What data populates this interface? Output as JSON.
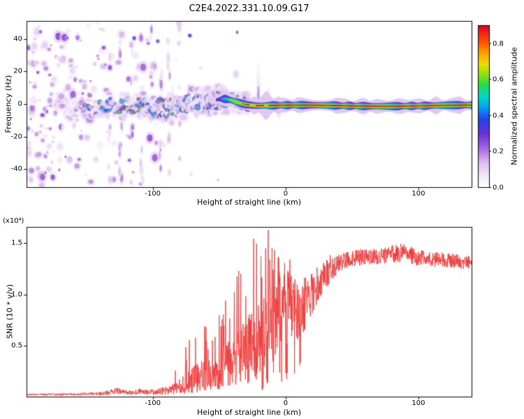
{
  "title": "C2E4.2022.331.10.09.G17",
  "chart_data": [
    {
      "type": "heatmap",
      "panel": "spectrogram",
      "title": "C2E4.2022.331.10.09.G17",
      "xlabel": "Height of straight line (km)",
      "ylabel": "Frequency (Hz)",
      "xlim": [
        -195,
        140
      ],
      "ylim": [
        -51,
        51
      ],
      "xticks": [
        {
          "v": -100,
          "label": "-100"
        },
        {
          "v": 0,
          "label": "0"
        },
        {
          "v": 100,
          "label": "100"
        }
      ],
      "yticks": [
        {
          "v": -40,
          "label": "-40"
        },
        {
          "v": -20,
          "label": "-20"
        },
        {
          "v": 0,
          "label": "0"
        },
        {
          "v": 20,
          "label": "20"
        },
        {
          "v": 40,
          "label": "40"
        }
      ],
      "colorbar": {
        "label": "Normalized spectral amplitude",
        "vmin": 0.0,
        "vmax": 0.9,
        "ticks": [
          {
            "v": 0.0,
            "label": "0.0"
          },
          {
            "v": 0.2,
            "label": "0.2"
          },
          {
            "v": 0.4,
            "label": "0.4"
          },
          {
            "v": 0.6,
            "label": "0.6"
          },
          {
            "v": 0.8,
            "label": "0.8"
          }
        ],
        "stops": [
          [
            0,
            "#ffffff"
          ],
          [
            0.07,
            "#f3e8f8"
          ],
          [
            0.15,
            "#dcc0ee"
          ],
          [
            0.24,
            "#a868dc"
          ],
          [
            0.33,
            "#6a30d8"
          ],
          [
            0.42,
            "#2840e8"
          ],
          [
            0.5,
            "#00a8f0"
          ],
          [
            0.56,
            "#00d8c8"
          ],
          [
            0.63,
            "#20dc50"
          ],
          [
            0.7,
            "#90e010"
          ],
          [
            0.76,
            "#e8e000"
          ],
          [
            0.83,
            "#ffa000"
          ],
          [
            0.9,
            "#ff5000"
          ],
          [
            1,
            "#e00020"
          ]
        ]
      },
      "description": "Scattered low-amplitude purple noise fills the left third of the panel, thinning toward the centre; a narrow signal trace near 0 Hz wanders as scattered blue/cyan/green blobs for heights below about -30 km, then becomes a tight continuous red-cored band with green/cyan/purple fringes out to +140 km.",
      "noise_field": {
        "x_range": [
          -195,
          -30
        ],
        "amp_range": [
          0.05,
          0.27
        ],
        "density": [
          [
            -195,
            3.6
          ],
          [
            -182,
            3.3
          ],
          [
            -170,
            3.0
          ],
          [
            -158,
            2.5
          ],
          [
            -150,
            1.9
          ],
          [
            -142,
            1.4
          ],
          [
            -134,
            1.0
          ],
          [
            -126,
            0.8
          ],
          [
            -118,
            0.85
          ],
          [
            -110,
            0.75
          ],
          [
            -102,
            0.6
          ],
          [
            -94,
            0.45
          ],
          [
            -86,
            0.3
          ],
          [
            -78,
            0.2
          ],
          [
            -70,
            0.14
          ],
          [
            -62,
            0.1
          ],
          [
            -52,
            0.09
          ],
          [
            -42,
            0.07
          ],
          [
            -30,
            0.05
          ]
        ],
        "streaks": [
          {
            "x": -133,
            "s": 1.5
          },
          {
            "x": -124,
            "s": 2.0
          },
          {
            "x": -116,
            "s": 1.7
          },
          {
            "x": -108,
            "s": 2.2
          },
          {
            "x": -101,
            "s": 1.4
          },
          {
            "x": -94,
            "s": 1.9
          },
          {
            "x": -88,
            "s": 1.3
          },
          {
            "x": -80,
            "s": 1.0
          },
          {
            "x": -72,
            "s": 0.7
          }
        ]
      },
      "band": {
        "center_hz": -1,
        "scatter_x": [
          -172,
          -28
        ],
        "scatter_density": [
          [
            -172,
            0.15
          ],
          [
            -158,
            0.2
          ],
          [
            -145,
            0.28
          ],
          [
            -132,
            0.35
          ],
          [
            -120,
            0.45
          ],
          [
            -108,
            0.55
          ],
          [
            -96,
            0.65
          ],
          [
            -85,
            0.78
          ],
          [
            -74,
            0.9
          ],
          [
            -62,
            1.0
          ],
          [
            -50,
            1.05
          ],
          [
            -40,
            1.1
          ],
          [
            -28,
            1.1
          ]
        ],
        "continuous_x": [
          -57,
          140
        ],
        "red_segments": [
          [
            -33.5,
            -27.5
          ],
          [
            -23,
            -16.5
          ],
          [
            -13.5,
            140
          ]
        ],
        "bulges": [
          {
            "c": -24,
            "s": 2.5,
            "a": 2.2
          },
          {
            "c": -15,
            "s": 3.5,
            "a": 4.2
          },
          {
            "c": -6,
            "s": 2.5,
            "a": 2.2
          },
          {
            "c": 8,
            "s": 3,
            "a": 0.8
          },
          {
            "c": 38,
            "s": 3,
            "a": 0.9
          },
          {
            "c": 60,
            "s": 2.5,
            "a": 1.3
          },
          {
            "c": 85,
            "s": 5,
            "a": 1.8
          },
          {
            "c": 112,
            "s": 3,
            "a": 1.1
          },
          {
            "c": 131,
            "s": 3,
            "a": 1.5
          }
        ],
        "layers": [
          {
            "amp": 0.12,
            "hw": 3.0,
            "start": -57
          },
          {
            "amp": 0.3,
            "hw": 2.2,
            "start": -53
          },
          {
            "amp": 0.44,
            "hw": 1.65,
            "start": -49
          },
          {
            "amp": 0.55,
            "hw": 1.2,
            "start": -46
          },
          {
            "amp": 0.62,
            "hw": 0.95,
            "start": -43
          },
          {
            "amp": 0.72,
            "hw": 0.62,
            "start": -39
          },
          {
            "amp": 0.88,
            "hw": 0.4,
            "start": -33.5
          }
        ]
      },
      "plumes": [
        {
          "x": -20.5,
          "top": 27,
          "w": 2.6,
          "amp": 0.16,
          "inner_top": 11,
          "inner_amp": 0.48
        },
        {
          "x": -13,
          "top": 10,
          "w": 2.4,
          "amp": 0.16
        },
        {
          "x": -29,
          "top": 9,
          "w": 2.0,
          "amp": 0.14
        },
        {
          "x": -47,
          "top": 11,
          "w": 2.2,
          "amp": 0.15
        },
        {
          "x": -57,
          "top": 8,
          "w": 2.0,
          "amp": 0.14
        },
        {
          "x": -85,
          "top": 14,
          "w": 2.0,
          "amp": 0.12
        },
        {
          "x": -5,
          "top": -9,
          "w": 2.6,
          "amp": 0.15
        }
      ]
    },
    {
      "type": "line",
      "panel": "snr",
      "xlabel": "Height of straight line (km)",
      "ylabel": "SNR (10 * v/v)",
      "scale_note": "(x10⁴)",
      "xlim": [
        -195,
        140
      ],
      "ylim": [
        0,
        1.66
      ],
      "xticks": [
        {
          "v": -100,
          "label": "-100"
        },
        {
          "v": 0,
          "label": "0"
        },
        {
          "v": 100,
          "label": "100"
        }
      ],
      "yticks": [
        {
          "v": 0.5,
          "label": "0.5"
        },
        {
          "v": 1.0,
          "label": "1.0"
        },
        {
          "v": 1.5,
          "label": "1.5"
        }
      ],
      "line_color": "#f23333",
      "description": "SNR stays near zero below -100 km, grows increasingly noisy and spiky between -80 and 0 km (largest spikes ~1.6e4 near -15 km), then rises to a noisy plateau of ~1.35e4 above +40 km.",
      "envelope": [
        [
          -195,
          0.018,
          0.01,
          0,
          0
        ],
        [
          -170,
          0.02,
          0.012,
          0,
          0
        ],
        [
          -152,
          0.024,
          0.014,
          0,
          0
        ],
        [
          -138,
          0.03,
          0.018,
          0,
          0
        ],
        [
          -127,
          0.055,
          0.032,
          0,
          0
        ],
        [
          -119,
          0.038,
          0.022,
          0,
          0
        ],
        [
          -110,
          0.048,
          0.028,
          0,
          0
        ],
        [
          -100,
          0.042,
          0.026,
          0,
          0
        ],
        [
          -90,
          0.055,
          0.04,
          0.02,
          0.12
        ],
        [
          -82,
          0.085,
          0.065,
          0.05,
          0.25
        ],
        [
          -74,
          0.125,
          0.105,
          0.08,
          0.4
        ],
        [
          -66,
          0.175,
          0.145,
          0.1,
          0.52
        ],
        [
          -58,
          0.2,
          0.16,
          0.1,
          0.5
        ],
        [
          -50,
          0.24,
          0.19,
          0.12,
          0.6
        ],
        [
          -42,
          0.3,
          0.23,
          0.12,
          0.72
        ],
        [
          -34,
          0.38,
          0.28,
          0.14,
          0.9
        ],
        [
          -26,
          0.47,
          0.33,
          0.15,
          1.1
        ],
        [
          -18,
          0.59,
          0.38,
          0.16,
          1.06
        ],
        [
          -10,
          0.7,
          0.41,
          0.14,
          0.95
        ],
        [
          -3,
          0.8,
          0.38,
          0.1,
          0.7
        ],
        [
          4,
          0.85,
          0.33,
          0.08,
          0.5
        ],
        [
          11,
          0.82,
          0.3,
          0.06,
          0.42
        ],
        [
          19,
          0.98,
          0.22,
          0.04,
          0.3
        ],
        [
          28,
          1.14,
          0.15,
          0.02,
          0.2
        ],
        [
          37,
          1.27,
          0.105,
          0.01,
          0.15
        ],
        [
          48,
          1.34,
          0.08,
          0.005,
          0.1
        ],
        [
          62,
          1.36,
          0.08,
          0.005,
          0.1
        ],
        [
          78,
          1.38,
          0.085,
          0.01,
          0.12
        ],
        [
          88,
          1.4,
          0.09,
          0.01,
          0.12
        ],
        [
          100,
          1.35,
          0.08,
          0.005,
          0.1
        ],
        [
          115,
          1.33,
          0.075,
          0,
          0
        ],
        [
          128,
          1.32,
          0.07,
          0,
          0
        ],
        [
          140,
          1.3,
          0.065,
          0,
          0
        ]
      ]
    }
  ]
}
